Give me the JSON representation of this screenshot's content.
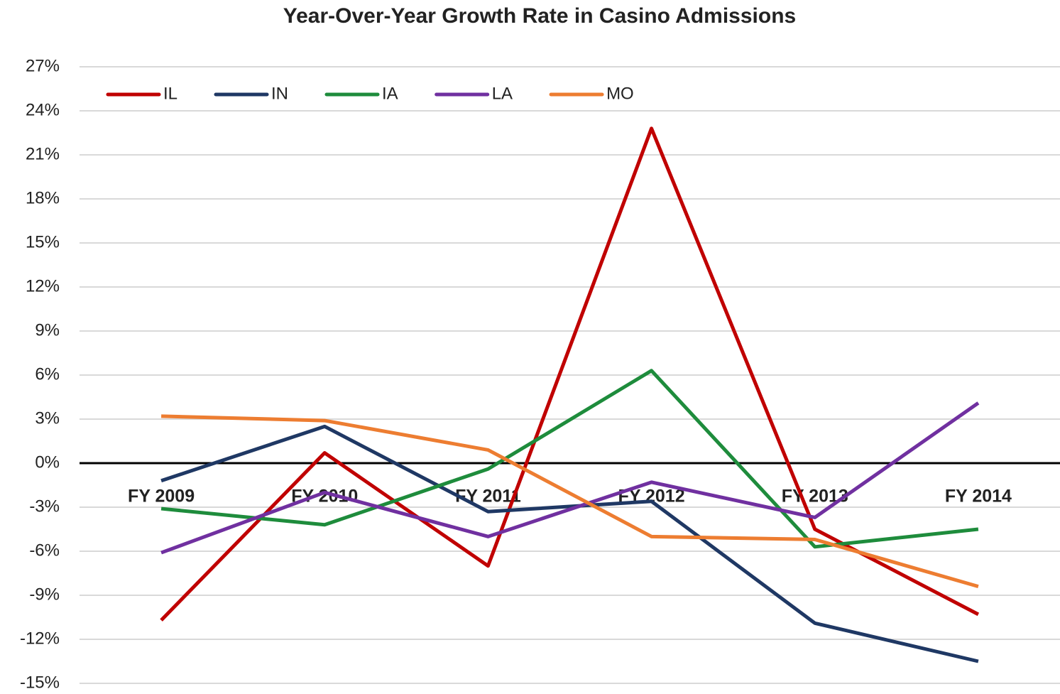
{
  "chart_data": {
    "type": "line",
    "title": "Year-Over-Year Growth Rate in Casino Admissions",
    "categories": [
      "FY 2009",
      "FY 2010",
      "FY 2011",
      "FY 2012",
      "FY 2013",
      "FY 2014"
    ],
    "series": [
      {
        "name": "IL",
        "color": "#c00000",
        "values": [
          -10.7,
          0.7,
          -7.0,
          22.8,
          -4.5,
          -10.3
        ]
      },
      {
        "name": "IN",
        "color": "#1f3864",
        "values": [
          -1.2,
          2.5,
          -3.3,
          -2.6,
          -10.9,
          -13.5
        ]
      },
      {
        "name": "IA",
        "color": "#1e8c3c",
        "values": [
          -3.1,
          -4.2,
          -0.4,
          6.3,
          -5.7,
          -4.5
        ]
      },
      {
        "name": "LA",
        "color": "#7030a0",
        "values": [
          -6.1,
          -2.0,
          -5.0,
          -1.3,
          -3.7,
          4.1
        ]
      },
      {
        "name": "MO",
        "color": "#ed7d31",
        "values": [
          3.2,
          2.9,
          0.9,
          -5.0,
          -5.2,
          -8.4
        ]
      }
    ],
    "ylim": [
      -15,
      27
    ],
    "yticks": [
      {
        "value": -15,
        "label": "-15%"
      },
      {
        "value": -12,
        "label": "-12%"
      },
      {
        "value": -9,
        "label": "-9%"
      },
      {
        "value": -6,
        "label": "-6%"
      },
      {
        "value": -3,
        "label": "-3%"
      },
      {
        "value": 0,
        "label": "0%"
      },
      {
        "value": 3,
        "label": "3%"
      },
      {
        "value": 6,
        "label": "6%"
      },
      {
        "value": 9,
        "label": "9%"
      },
      {
        "value": 12,
        "label": "12%"
      },
      {
        "value": 15,
        "label": "15%"
      },
      {
        "value": 18,
        "label": "18%"
      },
      {
        "value": 21,
        "label": "21%"
      },
      {
        "value": 24,
        "label": "24%"
      },
      {
        "value": 27,
        "label": "27%"
      }
    ],
    "grid": true,
    "legend": "top-left"
  }
}
